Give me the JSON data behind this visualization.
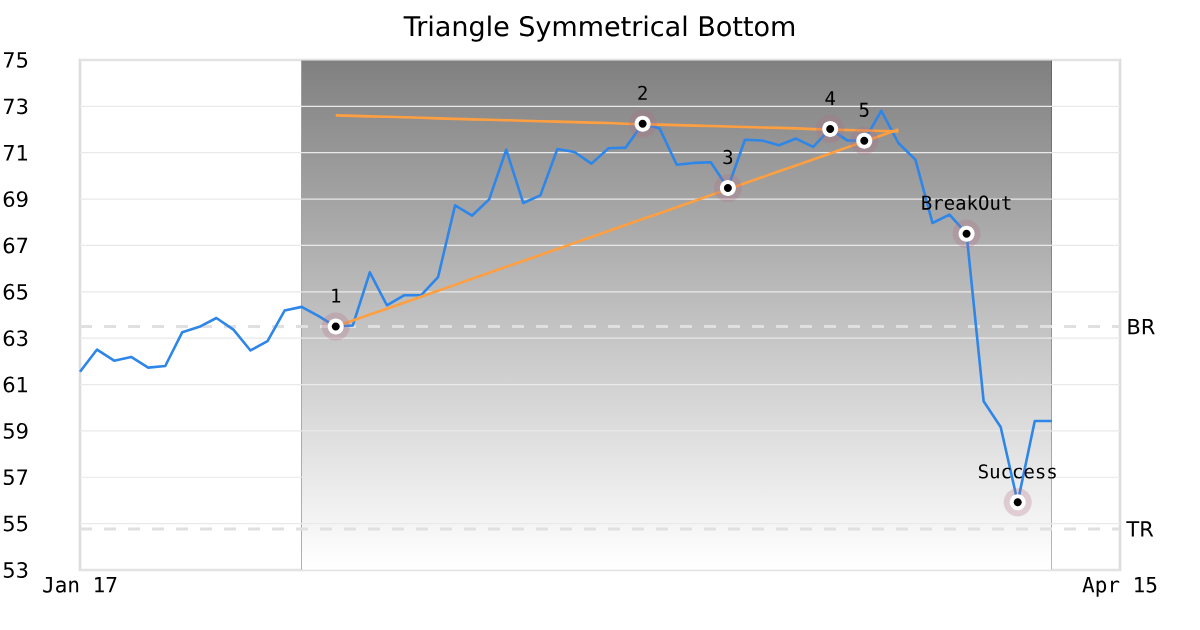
{
  "chart_data": {
    "type": "line",
    "title": "Triangle Symmetrical Bottom",
    "categories": [
      "Jan 17",
      null,
      null,
      null,
      null,
      null,
      null,
      null,
      null,
      null,
      null,
      null,
      null,
      null,
      null,
      null,
      null,
      null,
      null,
      null,
      null,
      null,
      null,
      null,
      null,
      null,
      null,
      null,
      null,
      null,
      null,
      null,
      null,
      null,
      null,
      null,
      null,
      null,
      null,
      null,
      null,
      null,
      null,
      null,
      null,
      null,
      null,
      null,
      null,
      null,
      null,
      null,
      null,
      null,
      null,
      null,
      null,
      null,
      null,
      null,
      null,
      "Apr 15"
    ],
    "ylim": [
      53,
      75
    ],
    "yticks": [
      53,
      55,
      57,
      59,
      61,
      63,
      65,
      67,
      69,
      71,
      73,
      75
    ],
    "grid": "y",
    "series": [
      {
        "color": "#2e86e8",
        "values": [
          61.55,
          62.51,
          62.03,
          62.19,
          61.73,
          61.8,
          63.26,
          63.49,
          63.87,
          63.37,
          62.47,
          62.87,
          64.19,
          64.35,
          63.95,
          63.5,
          63.55,
          65.84,
          64.42,
          64.85,
          64.85,
          65.63,
          68.73,
          68.29,
          68.99,
          71.13,
          68.83,
          69.16,
          71.16,
          71.03,
          70.53,
          71.19,
          71.22,
          72.25,
          72.04,
          70.48,
          70.56,
          70.59,
          69.48,
          71.56,
          71.53,
          71.32,
          71.61,
          71.25,
          72.02,
          71.53,
          71.52,
          72.81,
          71.42,
          70.7,
          67.97,
          68.33,
          67.51,
          60.28,
          59.17,
          55.92,
          59.43,
          59.43,
          null,
          null,
          null,
          null
        ]
      },
      {
        "color": "#ff9f40",
        "values": [
          null,
          null,
          null,
          null,
          null,
          null,
          null,
          null,
          null,
          null,
          null,
          null,
          null,
          null,
          null,
          72.61,
          72.59,
          72.57,
          72.55,
          72.53,
          72.51,
          72.48,
          72.46,
          72.44,
          72.42,
          72.4,
          72.38,
          72.36,
          72.34,
          72.32,
          72.3,
          72.28,
          72.25,
          72.23,
          72.21,
          72.19,
          72.17,
          72.15,
          72.13,
          72.11,
          72.09,
          72.07,
          72.05,
          72.02,
          72.0,
          71.98,
          71.96,
          71.94,
          71.92,
          null,
          null,
          null,
          null,
          null,
          null,
          null,
          null,
          null,
          null,
          null,
          null,
          null
        ]
      },
      {
        "color": "#ff9f40",
        "values": [
          null,
          null,
          null,
          null,
          null,
          null,
          null,
          null,
          null,
          null,
          null,
          null,
          null,
          null,
          null,
          63.5,
          63.76,
          64.02,
          64.27,
          64.53,
          64.79,
          65.05,
          65.3,
          65.56,
          65.82,
          66.08,
          66.33,
          66.59,
          66.85,
          67.11,
          67.36,
          67.62,
          67.88,
          68.14,
          68.39,
          68.65,
          68.91,
          69.17,
          69.42,
          69.68,
          69.94,
          70.2,
          70.45,
          70.71,
          70.97,
          71.23,
          71.48,
          71.74,
          72.0,
          null,
          null,
          null,
          null,
          null,
          null,
          null,
          null,
          null,
          null,
          null,
          null,
          null
        ]
      },
      {
        "type": "scatter",
        "color": "#000000",
        "marker": "circle",
        "values": [
          null,
          null,
          null,
          null,
          null,
          null,
          null,
          null,
          null,
          null,
          null,
          null,
          null,
          null,
          null,
          63.5,
          null,
          null,
          null,
          null,
          null,
          null,
          null,
          null,
          null,
          null,
          null,
          null,
          null,
          null,
          null,
          null,
          null,
          72.25,
          null,
          null,
          null,
          null,
          69.48,
          null,
          null,
          null,
          null,
          null,
          72.02,
          null,
          71.52,
          null,
          null,
          null,
          null,
          null,
          67.51,
          null,
          null,
          55.92,
          null,
          null,
          null,
          null,
          null,
          null
        ]
      }
    ],
    "ref_lines": [
      {
        "axis": "y",
        "value": 63.5,
        "label": "BR",
        "color": "#e0e0e0",
        "line_style": "dashed"
      },
      {
        "axis": "y",
        "value": 54.77,
        "label": "TR",
        "color": "#e0e0e0",
        "line_style": "dashed"
      }
    ],
    "annotations": [
      {
        "text": "1",
        "y": 63.5
      },
      {
        "text": "2",
        "y": 72.25
      },
      {
        "text": "3",
        "y": 69.48
      },
      {
        "text": "4",
        "y": 72.02
      },
      {
        "text": "5",
        "y": 71.52
      },
      {
        "text": "BreakOut",
        "y": 67.51
      },
      {
        "text": "Success",
        "y": 55.92
      }
    ]
  }
}
